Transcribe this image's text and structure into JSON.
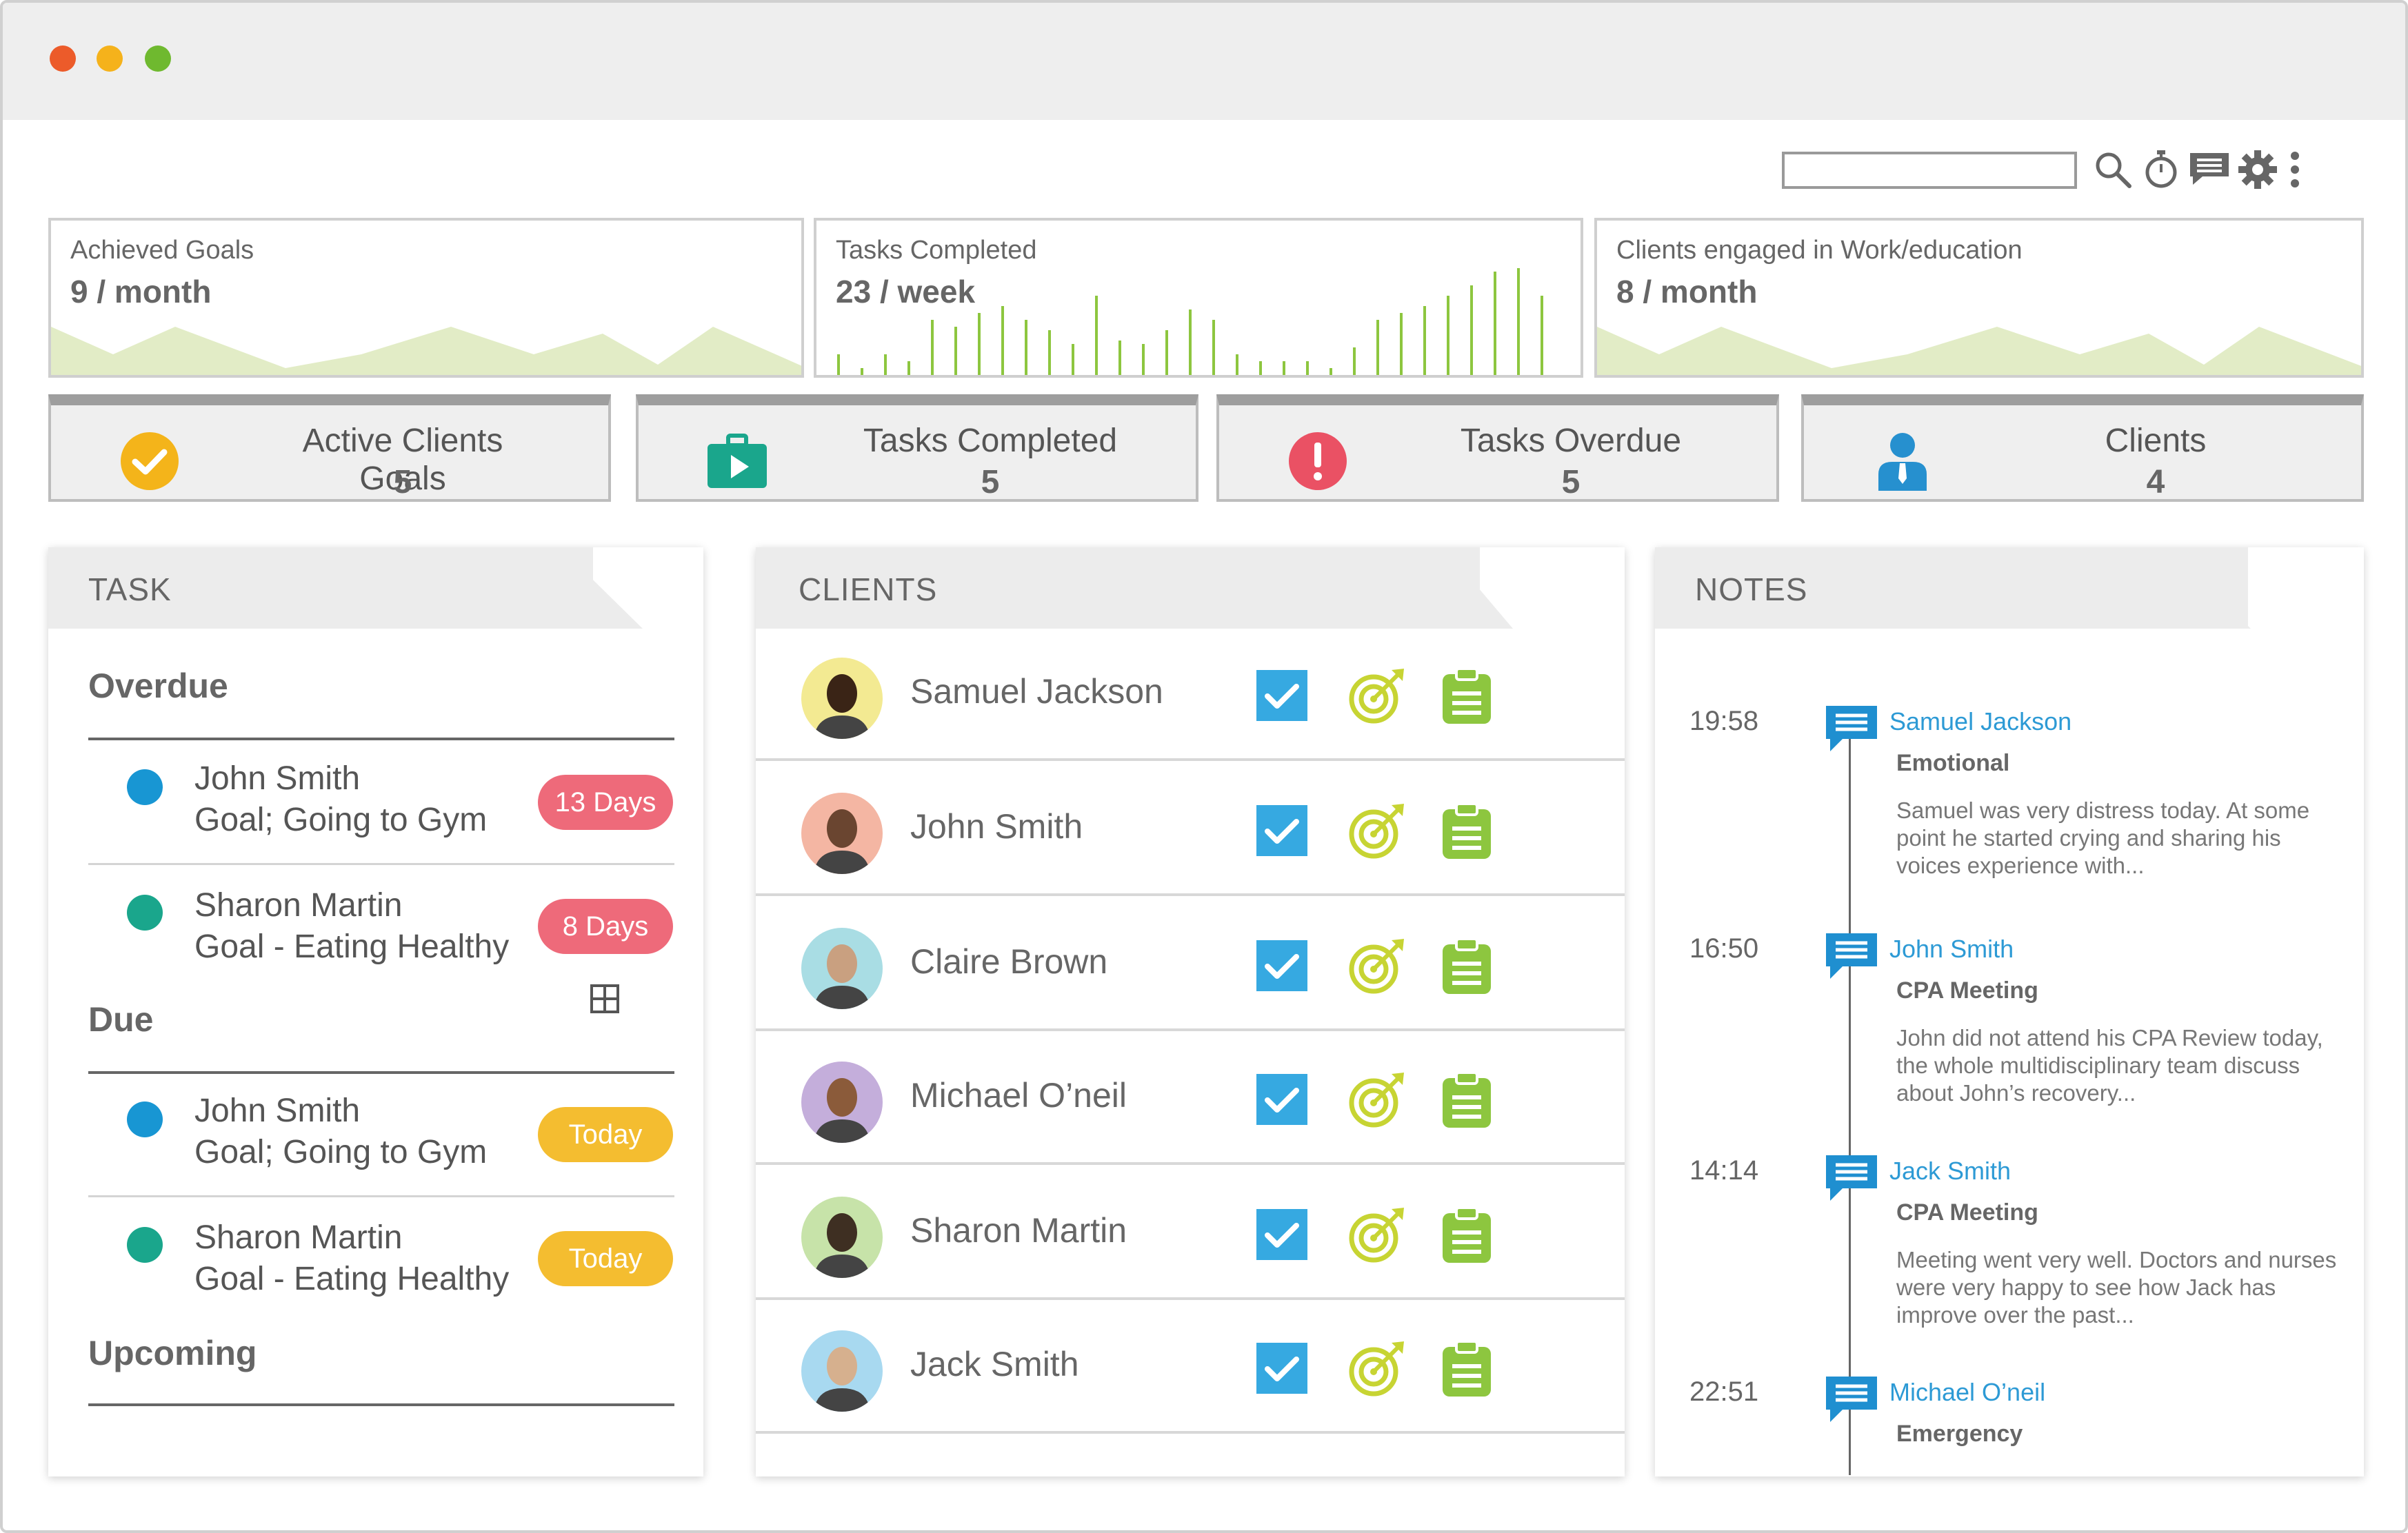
{
  "colors": {
    "accent_blue": "#2d9ad5",
    "red": "#ee6a7a",
    "yellow": "#f4bd30",
    "green": "#8dc63f",
    "teal": "#1aa68c"
  },
  "toolbar": {
    "search_placeholder": "",
    "icons": [
      "search-icon",
      "timer-icon",
      "chat-icon",
      "gear-icon",
      "more-vertical-icon"
    ]
  },
  "stats": [
    {
      "label": "Achieved Goals",
      "value": "9 / month"
    },
    {
      "label": "Tasks Completed",
      "value": "23 / week"
    },
    {
      "label": "Clients engaged in Work/education",
      "value": "8 / month"
    }
  ],
  "kpis": [
    {
      "label": "Active Clients Goals",
      "value": "5",
      "icon": "check-circle-icon"
    },
    {
      "label": "Tasks Completed",
      "value": "5",
      "icon": "briefcase-play-icon"
    },
    {
      "label": "Tasks Overdue",
      "value": "5",
      "icon": "alert-icon"
    },
    {
      "label": "Clients",
      "value": "4",
      "icon": "person-icon"
    }
  ],
  "task": {
    "title": "TASK",
    "overdue_label": "Overdue",
    "due_label": "Due",
    "upcoming_label": "Upcoming",
    "overdue": [
      {
        "name": "John Smith",
        "goal": "Goal; Going to Gym",
        "badge": "13 Days"
      },
      {
        "name": "Sharon Martin",
        "goal": "Goal - Eating Healthy",
        "badge": "8 Days"
      }
    ],
    "due": [
      {
        "name": "John Smith",
        "goal": "Goal; Going to Gym",
        "badge": "Today"
      },
      {
        "name": "Sharon Martin",
        "goal": "Goal - Eating Healthy",
        "badge": "Today"
      }
    ]
  },
  "clients": {
    "title": "CLIENTS",
    "list": [
      {
        "name": "Samuel Jackson"
      },
      {
        "name": "John Smith"
      },
      {
        "name": "Claire Brown"
      },
      {
        "name": "Michael O’neil"
      },
      {
        "name": "Sharon Martin"
      },
      {
        "name": "Jack Smith"
      }
    ]
  },
  "notes": {
    "title": "NOTES",
    "items": [
      {
        "time": "19:58",
        "name": "Samuel Jackson",
        "type": "Emotional",
        "text": "Samuel was very distress today. At some point he started crying and sharing his voices experience with..."
      },
      {
        "time": "16:50",
        "name": "John Smith",
        "type": "CPA Meeting",
        "text": "John did not attend his CPA Review today, the whole multidisciplinary team discuss about John’s recovery..."
      },
      {
        "time": "14:14",
        "name": "Jack Smith",
        "type": "CPA Meeting",
        "text": "Meeting went very well. Doctors and nurses were very happy to see how Jack has improve over the past..."
      },
      {
        "time": "22:51",
        "name": "Michael O’neil",
        "type": "Emergency",
        "text": ""
      }
    ]
  }
}
